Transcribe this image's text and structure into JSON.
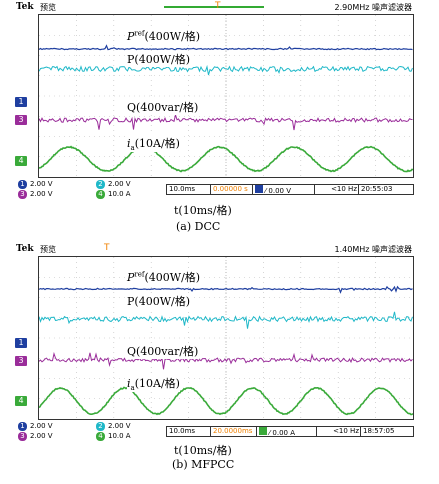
{
  "panels": [
    {
      "id": "a",
      "brand": "Tek",
      "mode": "预览",
      "rate": "2.90MHz  噪声滤波器",
      "trigger_marker": "T",
      "labels": {
        "p_ref": "P",
        "p_ref_sup": "ref",
        "p_ref_unit": "(400W/格)",
        "p": "P(400W/格)",
        "q": "Q(400var/格)",
        "i": "i",
        "i_sub": "a",
        "i_unit": "(10A/格)"
      },
      "markers": [
        "1",
        "3",
        "4"
      ],
      "channels": [
        {
          "num": "1",
          "value": "2.00 V"
        },
        {
          "num": "3",
          "value": "2.00 V"
        },
        {
          "num": "2",
          "value": "2.00 V"
        },
        {
          "num": "4",
          "value": "10.0 A"
        }
      ],
      "timebase": "10.0ms",
      "offset": "0.00000 s",
      "trigger_level": "0.00 V",
      "freq": "<10 Hz",
      "clock": "20:55:03",
      "xlabel": "t(10ms/格)",
      "caption": "(a)  DCC"
    },
    {
      "id": "b",
      "brand": "Tek",
      "mode": "预览",
      "rate": "1.40MHz  噪声滤波器",
      "trigger_marker": "T",
      "labels": {
        "p_ref": "P",
        "p_ref_sup": "ref",
        "p_ref_unit": "(400W/格)",
        "p": "P(400W/格)",
        "q": "Q(400var/格)",
        "i": "i",
        "i_sub": "a",
        "i_unit": "(10A/格)"
      },
      "markers": [
        "1",
        "3",
        "4"
      ],
      "channels": [
        {
          "num": "1",
          "value": "2.00 V"
        },
        {
          "num": "3",
          "value": "2.00 V"
        },
        {
          "num": "2",
          "value": "2.00 V"
        },
        {
          "num": "4",
          "value": "10.0 A"
        }
      ],
      "timebase": "10.0ms",
      "offset": "20.0000ms",
      "trigger_level": "0.00 A",
      "freq": "<10 Hz",
      "clock": "18:57:05",
      "xlabel": "t(10ms/格)",
      "caption": "(b)  MFPCC"
    }
  ],
  "colors": {
    "pref": "#1f3fa0",
    "p": "#1fb8c8",
    "q": "#9a2d9a",
    "i": "#3aaa3a",
    "ch1": "#1f3fa0",
    "ch2": "#1fb8c8",
    "ch3": "#9a2d9a",
    "ch4": "#3aaa3a",
    "trigger": "#f08000"
  },
  "icons": {
    "trigger": "trigger-icon",
    "slope": "rising-edge-icon"
  }
}
